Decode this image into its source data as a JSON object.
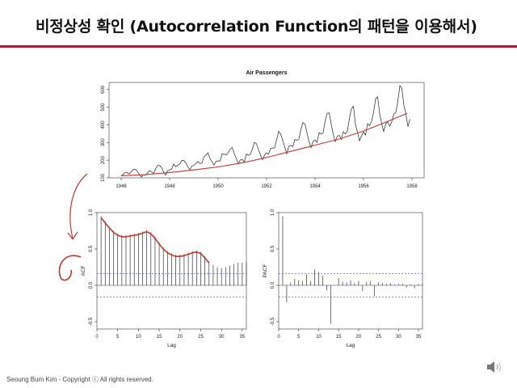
{
  "slide": {
    "title": "비정상성 확인 (Autocorrelation Function의 패턴을 이용해서)",
    "footer": "Seoung Bum Kim - Copyright ⓒ All rights reserved.",
    "accent_color": "#9b2335",
    "speaker_icon": "speaker-icon"
  },
  "chart_data": [
    {
      "type": "line",
      "title": "Air Passengers",
      "xlabel": "",
      "ylabel": "",
      "xlim": [
        1945.5,
        1958.5
      ],
      "ylim": [
        100,
        640
      ],
      "x_ticks": [
        1946,
        1948,
        1950,
        1952,
        1954,
        1956,
        1958
      ],
      "x_tick_labels": [
        "1946",
        "1948",
        "1950",
        "1952",
        "1954",
        "1956",
        "1958"
      ],
      "y_ticks": [
        100,
        200,
        300,
        400,
        500,
        600
      ],
      "y_tick_labels": [
        "100",
        "200",
        "300",
        "400",
        "500",
        "600"
      ],
      "series": [
        {
          "color": "#222222",
          "start_year": 1946,
          "monthly": true,
          "values": [
            112,
            118,
            132,
            129,
            121,
            135,
            148,
            148,
            136,
            119,
            104,
            118,
            115,
            126,
            141,
            135,
            125,
            149,
            170,
            170,
            158,
            133,
            114,
            140,
            145,
            150,
            178,
            163,
            172,
            178,
            199,
            199,
            184,
            162,
            146,
            166,
            171,
            180,
            193,
            181,
            183,
            218,
            230,
            242,
            209,
            191,
            172,
            194,
            196,
            196,
            236,
            235,
            229,
            243,
            264,
            272,
            237,
            211,
            180,
            201,
            204,
            188,
            235,
            227,
            234,
            264,
            302,
            293,
            259,
            229,
            203,
            229,
            242,
            233,
            267,
            269,
            270,
            315,
            364,
            347,
            312,
            274,
            237,
            278,
            284,
            277,
            317,
            313,
            318,
            374,
            413,
            405,
            355,
            306,
            271,
            306,
            315,
            301,
            356,
            348,
            355,
            422,
            465,
            467,
            404,
            347,
            305,
            336,
            340,
            318,
            362,
            348,
            363,
            435,
            491,
            505,
            404,
            359,
            310,
            337,
            360,
            342,
            406,
            396,
            420,
            472,
            548,
            559,
            463,
            407,
            362,
            405,
            417,
            391,
            419,
            461,
            472,
            535,
            622,
            606,
            508,
            461,
            390,
            432
          ]
        },
        {
          "color": "#c0392b",
          "x": [
            1946,
            1947,
            1948,
            1949,
            1950,
            1951,
            1952,
            1953,
            1954,
            1955,
            1956,
            1957,
            1957.8
          ],
          "values": [
            112,
            118,
            130,
            145,
            162,
            185,
            215,
            250,
            285,
            320,
            365,
            420,
            465
          ]
        }
      ]
    },
    {
      "type": "bar",
      "xlabel": "Lag",
      "ylabel": "ACF",
      "xlim": [
        0,
        36
      ],
      "ylim": [
        -0.6,
        1.0
      ],
      "x_ticks": [
        0,
        5,
        10,
        15,
        20,
        25,
        30,
        35
      ],
      "x_tick_labels": [
        "0",
        "5",
        "10",
        "15",
        "20",
        "25",
        "30",
        "35"
      ],
      "y_ticks": [
        -0.5,
        0.0,
        0.5,
        1.0
      ],
      "y_tick_labels": [
        "-0.5",
        "0.0",
        "0.5",
        "1.0"
      ],
      "confidence_band": 0.16,
      "lags": [
        1,
        2,
        3,
        4,
        5,
        6,
        7,
        8,
        9,
        10,
        11,
        12,
        13,
        14,
        15,
        16,
        17,
        18,
        19,
        20,
        21,
        22,
        23,
        24,
        25,
        26,
        27,
        28,
        29,
        30,
        31,
        32,
        33,
        34,
        35,
        36
      ],
      "values": [
        0.95,
        0.88,
        0.81,
        0.75,
        0.71,
        0.69,
        0.69,
        0.7,
        0.71,
        0.72,
        0.74,
        0.76,
        0.73,
        0.67,
        0.59,
        0.52,
        0.47,
        0.44,
        0.42,
        0.42,
        0.43,
        0.45,
        0.47,
        0.48,
        0.46,
        0.4,
        0.33,
        0.28,
        0.25,
        0.24,
        0.25,
        0.27,
        0.29,
        0.31,
        0.31,
        0.32
      ],
      "trend_color": "#c0392b",
      "band_color": "#3355cc"
    },
    {
      "type": "bar",
      "xlabel": "Lag",
      "ylabel": "PACF",
      "xlim": [
        0,
        36
      ],
      "ylim": [
        -0.6,
        1.0
      ],
      "x_ticks": [
        0,
        5,
        10,
        15,
        20,
        25,
        30,
        35
      ],
      "x_tick_labels": [
        "0",
        "5",
        "10",
        "15",
        "20",
        "25",
        "30",
        "35"
      ],
      "y_ticks": [
        -0.5,
        0.0,
        0.5,
        1.0
      ],
      "y_tick_labels": [
        "-0.5",
        "0.0",
        "0.5",
        "1.0"
      ],
      "confidence_band": 0.16,
      "lags": [
        1,
        2,
        3,
        4,
        5,
        6,
        7,
        8,
        9,
        10,
        11,
        12,
        13,
        14,
        15,
        16,
        17,
        18,
        19,
        20,
        21,
        22,
        23,
        24,
        25,
        26,
        27,
        28,
        29,
        30,
        31,
        32,
        33,
        34,
        35,
        36
      ],
      "values": [
        0.95,
        -0.23,
        0.04,
        0.09,
        0.07,
        0.06,
        0.15,
        0.06,
        0.22,
        0.18,
        0.13,
        -0.07,
        -0.53,
        0.0,
        0.1,
        0.05,
        0.04,
        0.07,
        0.03,
        0.06,
        -0.08,
        0.05,
        0.06,
        -0.15,
        0.04,
        0.03,
        0.02,
        0.03,
        0.01,
        0.02,
        0.02,
        -0.03,
        0.01,
        -0.04,
        0.02,
        0.02
      ],
      "band_color": "#3355cc"
    }
  ]
}
